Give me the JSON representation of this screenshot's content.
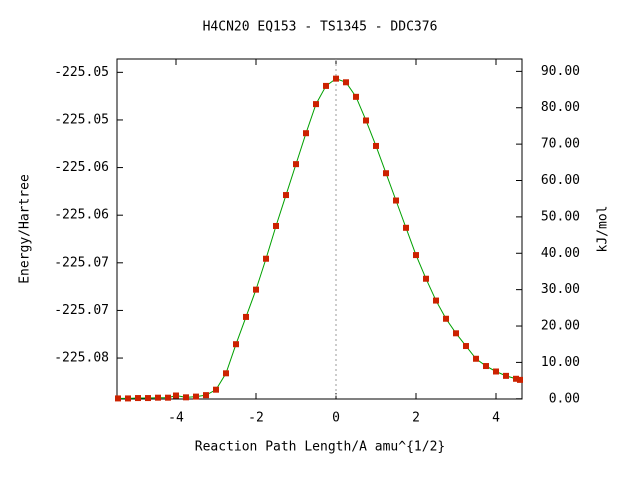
{
  "chart_data": {
    "type": "line",
    "title": "H4CN20   EQ153 - TS1345 - DDC376",
    "x_label": "Reaction Path Length/A amu^{1/2}",
    "y_label": "Energy/Hartree",
    "y2_label": "kJ/mol",
    "xlim": [
      -5.475,
      4.65
    ],
    "xticks": [
      -4,
      -2,
      0,
      2,
      4
    ],
    "ylim": [
      -225.0843,
      -225.0486
    ],
    "yticks": [
      {
        "value": -225.05,
        "label": "-225.05"
      },
      {
        "value": -225.055,
        "label": "-225.05"
      },
      {
        "value": -225.06,
        "label": "-225.06"
      },
      {
        "value": -225.065,
        "label": "-225.06"
      },
      {
        "value": -225.07,
        "label": "-225.07"
      },
      {
        "value": -225.075,
        "label": "-225.07"
      },
      {
        "value": -225.08,
        "label": "-225.08"
      }
    ],
    "y2lim": [
      -0.06,
      93.4
    ],
    "y2ticks": [
      {
        "value": 0,
        "label": "0.00"
      },
      {
        "value": 10,
        "label": "10.00"
      },
      {
        "value": 20,
        "label": "20.00"
      },
      {
        "value": 30,
        "label": "30.00"
      },
      {
        "value": 40,
        "label": "40.00"
      },
      {
        "value": 50,
        "label": "50.00"
      },
      {
        "value": 60,
        "label": "60.00"
      },
      {
        "value": 70,
        "label": "70.00"
      },
      {
        "value": 80,
        "label": "80.00"
      },
      {
        "value": 90,
        "label": "90.00"
      }
    ],
    "x": [
      -5.45,
      -5.2,
      -4.95,
      -4.7,
      -4.45,
      -4.2,
      -4.0,
      -3.75,
      -3.5,
      -3.25,
      -3.0,
      -2.75,
      -2.5,
      -2.25,
      -2.0,
      -1.75,
      -1.5,
      -1.25,
      -1.0,
      -0.75,
      -0.5,
      -0.25,
      0,
      0.25,
      0.5,
      0.75,
      1.0,
      1.25,
      1.5,
      1.75,
      2.0,
      2.25,
      2.5,
      2.75,
      3.0,
      3.25,
      3.5,
      3.75,
      4.0,
      4.25,
      4.5,
      4.6
    ],
    "series": [
      {
        "axis": "y2",
        "color": "#00a000",
        "marker_color": "#cc2200",
        "values": [
          0.1,
          0.1,
          0.2,
          0.2,
          0.3,
          0.3,
          0.9,
          0.4,
          0.6,
          1.0,
          2.5,
          7,
          15,
          22.5,
          30,
          38.5,
          47.5,
          56,
          64.5,
          73,
          81,
          86,
          88,
          87,
          83,
          76.5,
          69.5,
          62,
          54.5,
          47,
          39.5,
          33,
          27,
          22,
          18,
          14.5,
          11,
          9,
          7.5,
          6.3,
          5.5,
          5.2
        ]
      }
    ]
  }
}
